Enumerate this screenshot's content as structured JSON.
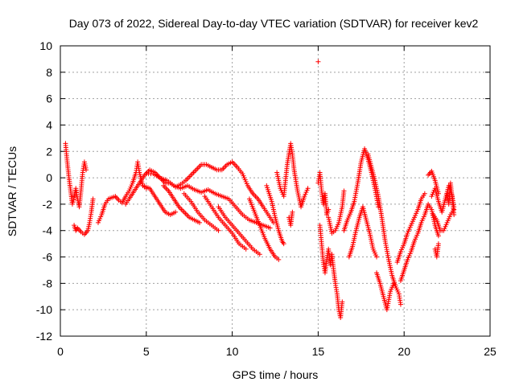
{
  "chart_data": {
    "type": "scatter",
    "title": "Day 073 of 2022, Sidereal Day-to-day VTEC variation (SDTVAR) for receiver kev2",
    "xlabel": "GPS time / hours",
    "ylabel": "SDTVAR / TECUs",
    "xlim": [
      0,
      25
    ],
    "ylim": [
      -12,
      10
    ],
    "xticks": [
      0,
      5,
      10,
      15,
      20,
      25
    ],
    "yticks": [
      -12,
      -10,
      -8,
      -6,
      -4,
      -2,
      0,
      2,
      4,
      6,
      8,
      10
    ],
    "grid": true,
    "marker": "+",
    "color": "#ff0000",
    "series": [
      {
        "name": "kev2",
        "traces": [
          [
            [
              0.3,
              2.6
            ],
            [
              0.4,
              1.2
            ],
            [
              0.5,
              0.0
            ],
            [
              0.6,
              -1.0
            ],
            [
              0.7,
              -2.0
            ],
            [
              0.8,
              -1.5
            ],
            [
              0.9,
              -0.8
            ],
            [
              1.0,
              -1.6
            ],
            [
              1.1,
              -2.2
            ],
            [
              1.2,
              -1.0
            ],
            [
              1.3,
              0.4
            ],
            [
              1.4,
              1.2
            ],
            [
              1.5,
              0.6
            ]
          ],
          [
            [
              0.8,
              -3.6
            ],
            [
              0.9,
              -4.0
            ],
            [
              1.0,
              -3.8
            ],
            [
              1.2,
              -4.1
            ],
            [
              1.4,
              -4.3
            ],
            [
              1.6,
              -4.0
            ],
            [
              1.7,
              -3.4
            ],
            [
              1.8,
              -2.6
            ],
            [
              1.9,
              -1.6
            ]
          ],
          [
            [
              2.2,
              -3.4
            ],
            [
              2.4,
              -2.8
            ],
            [
              2.6,
              -2.0
            ],
            [
              2.8,
              -1.6
            ],
            [
              3.0,
              -1.5
            ],
            [
              3.2,
              -1.4
            ],
            [
              3.4,
              -1.7
            ],
            [
              3.6,
              -1.9
            ],
            [
              3.8,
              -1.4
            ],
            [
              4.0,
              -1.0
            ],
            [
              4.2,
              -0.4
            ],
            [
              4.4,
              0.4
            ],
            [
              4.5,
              1.2
            ],
            [
              4.6,
              0.4
            ],
            [
              4.8,
              -0.6
            ],
            [
              5.0,
              -0.8
            ]
          ],
          [
            [
              3.8,
              -2.0
            ],
            [
              4.0,
              -1.6
            ],
            [
              4.3,
              -1.0
            ],
            [
              4.6,
              -0.4
            ],
            [
              4.9,
              0.2
            ],
            [
              5.2,
              0.6
            ],
            [
              5.5,
              0.4
            ],
            [
              5.8,
              0.0
            ],
            [
              6.1,
              -0.4
            ],
            [
              6.4,
              -0.4
            ],
            [
              6.7,
              -0.7
            ],
            [
              7.0,
              -0.5
            ],
            [
              7.3,
              -0.2
            ],
            [
              7.6,
              0.2
            ],
            [
              7.9,
              0.6
            ],
            [
              8.2,
              1.0
            ],
            [
              8.5,
              1.0
            ],
            [
              8.8,
              0.8
            ],
            [
              9.1,
              0.6
            ],
            [
              9.4,
              0.6
            ],
            [
              9.7,
              1.0
            ],
            [
              10.0,
              1.2
            ],
            [
              10.3,
              0.8
            ],
            [
              10.6,
              0.3
            ],
            [
              10.9,
              -0.6
            ],
            [
              11.2,
              -1.2
            ],
            [
              11.5,
              -1.6
            ],
            [
              11.8,
              -2.2
            ],
            [
              12.0,
              -2.6
            ],
            [
              12.2,
              -3.0
            ],
            [
              12.4,
              -3.4
            ]
          ],
          [
            [
              5.0,
              0.3
            ],
            [
              5.4,
              0.3
            ],
            [
              5.8,
              0.0
            ],
            [
              6.2,
              -0.2
            ],
            [
              6.6,
              -0.6
            ],
            [
              7.0,
              -0.8
            ],
            [
              7.4,
              -0.6
            ],
            [
              7.8,
              -0.9
            ],
            [
              8.2,
              -1.1
            ],
            [
              8.6,
              -0.9
            ],
            [
              9.0,
              -1.2
            ],
            [
              9.4,
              -1.4
            ],
            [
              9.8,
              -1.6
            ],
            [
              10.2,
              -2.2
            ],
            [
              10.6,
              -2.8
            ],
            [
              11.0,
              -3.2
            ],
            [
              11.4,
              -3.4
            ],
            [
              11.8,
              -3.6
            ],
            [
              12.2,
              -3.8
            ]
          ],
          [
            [
              4.8,
              -0.6
            ],
            [
              5.2,
              -0.8
            ],
            [
              5.5,
              -1.4
            ],
            [
              5.8,
              -2.0
            ],
            [
              6.1,
              -2.6
            ],
            [
              6.4,
              -2.8
            ],
            [
              6.7,
              -2.6
            ]
          ],
          [
            [
              6.0,
              -0.6
            ],
            [
              6.3,
              -1.0
            ],
            [
              6.6,
              -1.6
            ],
            [
              6.9,
              -2.2
            ],
            [
              7.2,
              -2.6
            ],
            [
              7.5,
              -3.0
            ],
            [
              7.8,
              -3.2
            ],
            [
              8.1,
              -3.4
            ]
          ],
          [
            [
              7.2,
              -1.2
            ],
            [
              7.6,
              -1.8
            ],
            [
              8.0,
              -2.6
            ],
            [
              8.4,
              -3.2
            ],
            [
              8.8,
              -3.6
            ],
            [
              9.2,
              -4.0
            ]
          ],
          [
            [
              8.4,
              -1.4
            ],
            [
              8.8,
              -2.2
            ],
            [
              9.2,
              -3.0
            ],
            [
              9.6,
              -3.6
            ],
            [
              10.0,
              -4.2
            ],
            [
              10.4,
              -5.0
            ],
            [
              10.8,
              -5.4
            ]
          ],
          [
            [
              9.2,
              -2.2
            ],
            [
              9.6,
              -3.0
            ],
            [
              10.0,
              -3.6
            ],
            [
              10.4,
              -4.2
            ],
            [
              10.8,
              -4.8
            ],
            [
              11.2,
              -5.4
            ],
            [
              11.6,
              -5.8
            ]
          ],
          [
            [
              11.0,
              -1.6
            ],
            [
              11.3,
              -2.6
            ],
            [
              11.6,
              -3.6
            ],
            [
              11.9,
              -4.6
            ],
            [
              12.2,
              -5.4
            ],
            [
              12.5,
              -6.0
            ],
            [
              12.7,
              -6.2
            ]
          ],
          [
            [
              12.0,
              -0.6
            ],
            [
              12.3,
              -1.8
            ],
            [
              12.5,
              -3.0
            ],
            [
              12.7,
              -4.0
            ],
            [
              12.9,
              -4.8
            ],
            [
              13.0,
              -5.0
            ]
          ],
          [
            [
              12.6,
              0.4
            ],
            [
              12.8,
              -0.8
            ],
            [
              13.0,
              -1.4
            ],
            [
              13.2,
              1.0
            ],
            [
              13.4,
              2.6
            ],
            [
              13.5,
              1.8
            ],
            [
              13.6,
              0.6
            ],
            [
              13.8,
              -1.0
            ],
            [
              14.0,
              -2.2
            ],
            [
              14.2,
              -1.4
            ],
            [
              14.4,
              -0.8
            ]
          ],
          [
            [
              13.3,
              -3.0
            ],
            [
              13.4,
              -3.6
            ],
            [
              13.5,
              -2.6
            ]
          ],
          [
            [
              15.0,
              8.8
            ]
          ],
          [
            [
              15.0,
              -0.4
            ],
            [
              15.1,
              0.4
            ],
            [
              15.2,
              -1.0
            ],
            [
              15.3,
              -2.0
            ],
            [
              15.4,
              -1.2
            ],
            [
              15.5,
              -2.8
            ],
            [
              15.6,
              -2.4
            ]
          ],
          [
            [
              15.1,
              -3.6
            ],
            [
              15.2,
              -5.0
            ],
            [
              15.3,
              -6.4
            ],
            [
              15.4,
              -7.2
            ],
            [
              15.5,
              -6.2
            ],
            [
              15.6,
              -5.4
            ],
            [
              15.7,
              -6.6
            ],
            [
              15.8,
              -5.8
            ],
            [
              15.9,
              -7.0
            ],
            [
              16.0,
              -8.0
            ],
            [
              16.1,
              -8.8
            ],
            [
              16.2,
              -10.0
            ],
            [
              16.3,
              -10.6
            ],
            [
              16.4,
              -9.4
            ]
          ],
          [
            [
              15.6,
              -3.0
            ],
            [
              15.8,
              -4.2
            ],
            [
              16.0,
              -4.0
            ],
            [
              16.2,
              -3.4
            ],
            [
              16.4,
              -2.2
            ],
            [
              16.5,
              -1.0
            ]
          ],
          [
            [
              16.5,
              -4.0
            ],
            [
              16.7,
              -3.2
            ],
            [
              16.9,
              -2.6
            ],
            [
              17.1,
              -1.8
            ],
            [
              17.3,
              -0.4
            ],
            [
              17.5,
              1.2
            ],
            [
              17.7,
              2.2
            ],
            [
              17.9,
              1.4
            ],
            [
              18.1,
              0.4
            ],
            [
              18.3,
              -0.8
            ],
            [
              18.5,
              -2.2
            ]
          ],
          [
            [
              16.8,
              -6.0
            ],
            [
              17.0,
              -5.2
            ],
            [
              17.2,
              -4.0
            ],
            [
              17.4,
              -3.0
            ],
            [
              17.6,
              -2.2
            ],
            [
              17.8,
              -3.2
            ],
            [
              18.0,
              -4.2
            ],
            [
              18.2,
              -5.4
            ],
            [
              18.4,
              -6.0
            ]
          ],
          [
            [
              18.4,
              -7.2
            ],
            [
              18.6,
              -8.0
            ],
            [
              18.8,
              -9.0
            ],
            [
              19.0,
              -10.0
            ],
            [
              19.2,
              -8.6
            ],
            [
              19.4,
              -8.0
            ]
          ],
          [
            [
              17.9,
              1.8
            ],
            [
              18.1,
              0.8
            ],
            [
              18.3,
              -0.2
            ],
            [
              18.5,
              -1.4
            ],
            [
              18.7,
              -3.0
            ],
            [
              18.9,
              -4.8
            ],
            [
              19.1,
              -6.2
            ],
            [
              19.3,
              -7.4
            ],
            [
              19.5,
              -8.2
            ],
            [
              19.7,
              -8.8
            ],
            [
              19.8,
              -9.6
            ]
          ],
          [
            [
              19.6,
              -6.4
            ],
            [
              19.8,
              -5.6
            ],
            [
              20.0,
              -5.0
            ],
            [
              20.2,
              -4.2
            ],
            [
              20.4,
              -3.6
            ],
            [
              20.6,
              -3.0
            ],
            [
              20.8,
              -2.4
            ],
            [
              21.0,
              -1.6
            ],
            [
              21.2,
              -1.2
            ]
          ],
          [
            [
              19.8,
              -7.8
            ],
            [
              20.0,
              -7.0
            ],
            [
              20.2,
              -6.2
            ],
            [
              20.4,
              -5.6
            ],
            [
              20.6,
              -4.8
            ],
            [
              20.8,
              -4.2
            ],
            [
              21.0,
              -3.4
            ],
            [
              21.2,
              -2.8
            ],
            [
              21.4,
              -2.0
            ],
            [
              21.6,
              -2.4
            ],
            [
              21.8,
              -3.6
            ],
            [
              22.0,
              -4.4
            ]
          ],
          [
            [
              21.6,
              -1.4
            ],
            [
              21.8,
              -0.8
            ],
            [
              22.0,
              -1.8
            ],
            [
              22.2,
              -2.6
            ],
            [
              22.4,
              -1.6
            ],
            [
              22.6,
              -0.6
            ],
            [
              22.8,
              -1.4
            ],
            [
              22.9,
              -2.2
            ]
          ],
          [
            [
              21.7,
              -2.8
            ],
            [
              21.9,
              -3.2
            ],
            [
              22.1,
              -4.0
            ],
            [
              22.3,
              -4.0
            ],
            [
              22.5,
              -3.4
            ],
            [
              22.7,
              -2.8
            ],
            [
              22.9,
              -2.4
            ]
          ],
          [
            [
              21.4,
              0.2
            ],
            [
              21.6,
              0.5
            ],
            [
              21.8,
              -0.2
            ],
            [
              22.0,
              -1.2
            ]
          ],
          [
            [
              21.8,
              -5.4
            ],
            [
              21.9,
              -6.0
            ],
            [
              22.0,
              -5.0
            ]
          ],
          [
            [
              22.5,
              -1.2
            ],
            [
              22.6,
              -2.0
            ],
            [
              22.7,
              -0.4
            ],
            [
              22.8,
              -1.6
            ],
            [
              22.9,
              -2.8
            ]
          ]
        ]
      }
    ]
  }
}
